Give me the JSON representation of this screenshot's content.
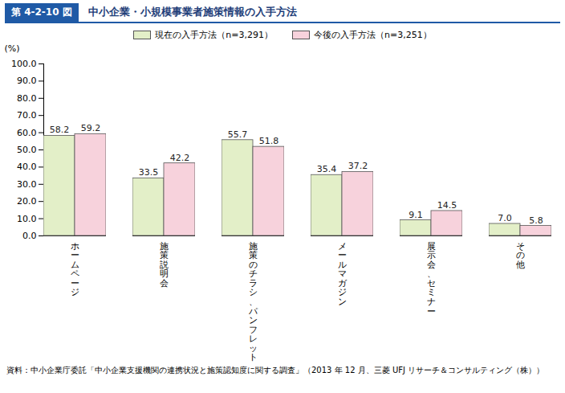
{
  "chart_data": {
    "type": "bar",
    "figure_label": "第 4-2-10 図",
    "title": "中小企業・小規模事業者施策情報の入手方法",
    "y_label": "(%)",
    "source": "資料：中小企業庁委託「中小企業支援機関の連携状況と施策認知度に関する調査」（2013 年 12 月、三菱 UFJ リサーチ＆コンサルティング（株））",
    "categories": [
      "ホームページ",
      "施策説明会",
      "施策のチラシ、パンフレット",
      "メールマガジン",
      "展示会、セミナー",
      "その他"
    ],
    "series": [
      {
        "name": "現在の入手方法（n=3,291）",
        "color": "#e3efc8",
        "values": [
          58.2,
          33.5,
          55.7,
          35.4,
          9.1,
          7.0
        ],
        "value_labels": [
          "58.2",
          "33.5",
          "55.7",
          "35.4",
          "9.1",
          "7.0"
        ]
      },
      {
        "name": "今後の入手方法（n=3,251）",
        "color": "#f7d2dc",
        "values": [
          59.2,
          42.2,
          51.8,
          37.2,
          14.5,
          5.8
        ],
        "value_labels": [
          "59.2",
          "42.2",
          "51.8",
          "37.2",
          "14.5",
          "5.8"
        ]
      }
    ],
    "ylim": [
      0,
      100
    ],
    "yticks": [
      {
        "value": 0,
        "label": "0.0"
      },
      {
        "value": 10,
        "label": "10.0"
      },
      {
        "value": 20,
        "label": "20.0"
      },
      {
        "value": 30,
        "label": "30.0"
      },
      {
        "value": 40,
        "label": "40.0"
      },
      {
        "value": 50,
        "label": "50.0"
      },
      {
        "value": 60,
        "label": "60.0"
      },
      {
        "value": 70,
        "label": "70.0"
      },
      {
        "value": 80,
        "label": "80.0"
      },
      {
        "value": 90,
        "label": "90.0"
      },
      {
        "value": 100,
        "label": "100.0"
      }
    ],
    "grid": false,
    "legend": "top",
    "data_labels": true
  }
}
